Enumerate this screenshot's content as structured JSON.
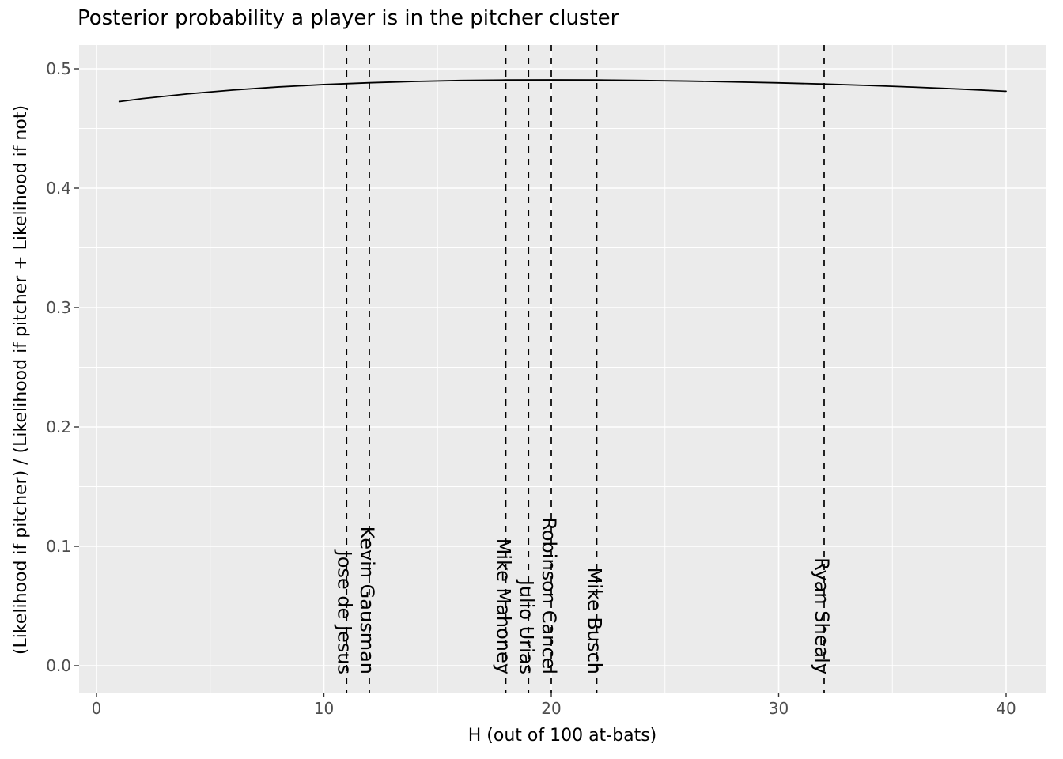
{
  "chart_data": {
    "type": "line",
    "title": "Posterior probability a player is in the pitcher cluster",
    "xlabel": "H (out of 100 at-bats)",
    "ylabel": "(Likelihood if pitcher) / (Likelihood if pitcher + Likelihood if not)",
    "xlim": [
      0,
      40
    ],
    "ylim": [
      0.0,
      0.5
    ],
    "grid": true,
    "legend": "none",
    "x_ticks": [
      0,
      10,
      20,
      30,
      40
    ],
    "x_minor_ticks": [
      5,
      15,
      25,
      35
    ],
    "y_ticks": [
      0.0,
      0.1,
      0.2,
      0.3,
      0.4,
      0.5
    ],
    "y_minor_ticks": [
      0.05,
      0.15,
      0.25,
      0.35,
      0.45
    ],
    "curve": {
      "name": "posterior-probability-curve",
      "x": [
        1,
        2,
        4,
        6,
        8,
        10,
        12,
        14,
        16,
        18,
        20,
        22,
        24,
        26,
        28,
        30,
        32,
        34,
        36,
        38,
        40
      ],
      "y": [
        0.4725,
        0.475,
        0.479,
        0.4822,
        0.4848,
        0.4868,
        0.4883,
        0.4894,
        0.4902,
        0.4906,
        0.4907,
        0.4906,
        0.4902,
        0.4897,
        0.489,
        0.4882,
        0.4872,
        0.486,
        0.4846,
        0.483,
        0.4812
      ]
    },
    "vlines": [
      {
        "label": "Jose de Jesus",
        "x": 11
      },
      {
        "label": "Kevin Gausman",
        "x": 12
      },
      {
        "label": "Mike Mahoney",
        "x": 18
      },
      {
        "label": "Julio Urias",
        "x": 19
      },
      {
        "label": "Robinson Cancel",
        "x": 20
      },
      {
        "label": "Mike Busch",
        "x": 22
      },
      {
        "label": "Ryan Shealy",
        "x": 32
      }
    ],
    "styles": {
      "panel_bg": "#EBEBEB",
      "grid": "#FFFFFF",
      "line": "#000000",
      "vline": "#000000",
      "tick": "#333333",
      "tick_text": "#4D4D4D",
      "text": "#000000"
    }
  }
}
